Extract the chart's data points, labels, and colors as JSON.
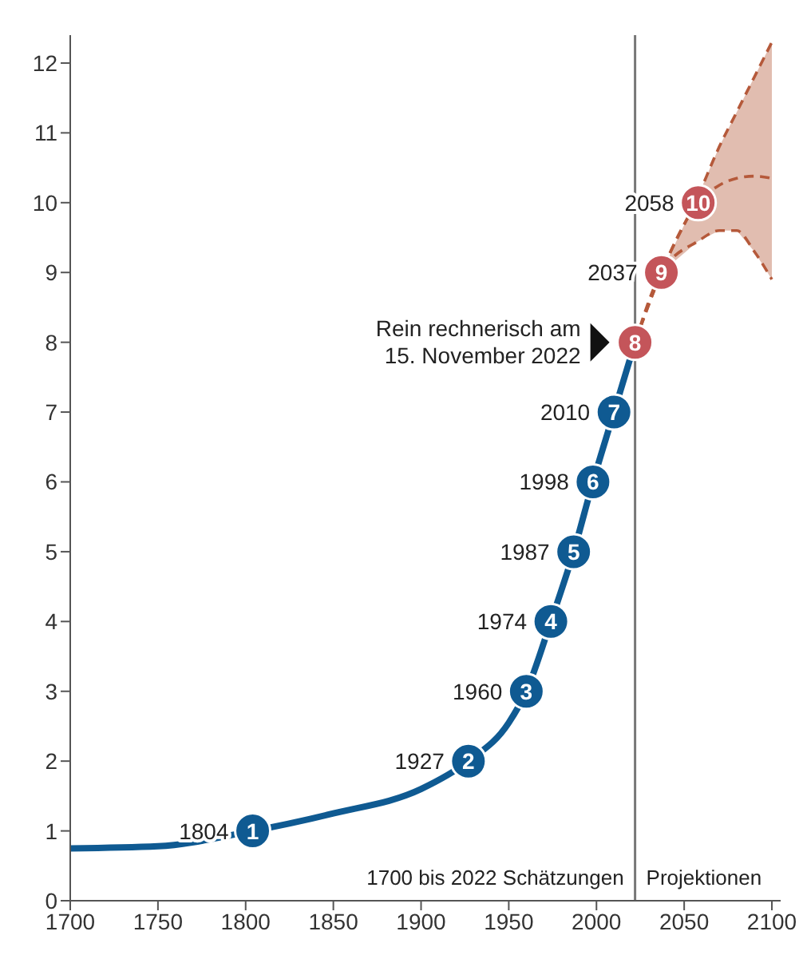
{
  "chart_data": {
    "type": "line",
    "xlim": [
      1700,
      2105
    ],
    "xticks": [
      1700,
      1750,
      1800,
      1850,
      1900,
      1950,
      2000,
      2050,
      2100
    ],
    "ylim": [
      0,
      12.4
    ],
    "yticks": [
      0,
      1,
      2,
      3,
      4,
      5,
      6,
      7,
      8,
      9,
      10,
      11,
      12
    ],
    "grid": false,
    "legend": false,
    "series": [
      {
        "color": "#0f5a92",
        "x": [
          1700,
          1750,
          1800,
          1850,
          1900,
          1927,
          1950,
          1960,
          1974,
          1987,
          1998,
          2010,
          2022
        ],
        "values": [
          0.75,
          0.78,
          0.98,
          1.25,
          1.6,
          2,
          2.55,
          3,
          4,
          5,
          6,
          7,
          8
        ]
      },
      {
        "type": "line",
        "color": "#b5593a",
        "x": [
          2022,
          2037,
          2058,
          2070,
          2080,
          2090,
          2100
        ],
        "values": [
          8,
          9,
          10,
          10.25,
          10.35,
          10.38,
          10.35
        ],
        "lower": [
          8,
          9,
          9.45,
          9.6,
          9.6,
          9.3,
          8.9
        ],
        "upper": [
          8,
          9,
          10.1,
          10.8,
          11.3,
          11.8,
          12.3
        ],
        "line_style": "dashed"
      },
      {
        "type": "scatter",
        "marker": "circle",
        "x": [
          1804,
          1927,
          1960,
          1974,
          1987,
          1998,
          2010,
          2022,
          2037,
          2058
        ],
        "values": [
          1,
          2,
          3,
          4,
          5,
          6,
          7,
          8,
          9,
          10
        ],
        "value_labels": [
          "1",
          "2",
          "3",
          "4",
          "5",
          "6",
          "7",
          "8",
          "9",
          "10"
        ],
        "colors": [
          "#0f5a92",
          "#0f5a92",
          "#0f5a92",
          "#0f5a92",
          "#0f5a92",
          "#0f5a92",
          "#0f5a92",
          "#c4555a",
          "#c4555a",
          "#c4555a"
        ]
      }
    ],
    "ref_lines": [
      {
        "axis": "x",
        "value": 2022,
        "color": "#777777"
      }
    ],
    "annotations": [
      {
        "text": "1804",
        "x": 1804,
        "y": 1
      },
      {
        "text": "1927",
        "x": 1927,
        "y": 2
      },
      {
        "text": "1960",
        "x": 1960,
        "y": 3
      },
      {
        "text": "1974",
        "x": 1974,
        "y": 4
      },
      {
        "text": "1987",
        "x": 1987,
        "y": 5
      },
      {
        "text": "1998",
        "x": 1998,
        "y": 6
      },
      {
        "text": "2010",
        "x": 2010,
        "y": 7
      },
      {
        "text": "2037",
        "x": 2037,
        "y": 9
      },
      {
        "text": "2058",
        "x": 2058,
        "y": 10
      },
      {
        "text": "Rein rechnerisch am\n15. November 2022",
        "x": 2022,
        "y": 8
      },
      "1700 bis 2022 Schätzungen",
      "Projektionen"
    ]
  }
}
